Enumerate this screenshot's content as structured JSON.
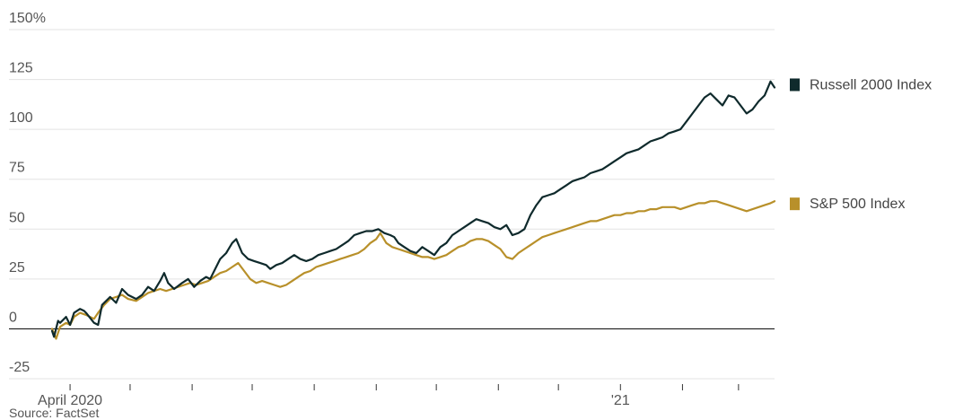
{
  "source": "Source: FactSet",
  "chart_data": {
    "type": "line",
    "title": "",
    "xlabel": "",
    "ylabel": "",
    "y_unit": "%",
    "ylim": [
      -25,
      150
    ],
    "y_ticks": [
      {
        "value": 150,
        "label": "150%"
      },
      {
        "value": 125,
        "label": "125"
      },
      {
        "value": 100,
        "label": "100"
      },
      {
        "value": 75,
        "label": "75"
      },
      {
        "value": 50,
        "label": "50"
      },
      {
        "value": 25,
        "label": "25"
      },
      {
        "value": 0,
        "label": "0"
      },
      {
        "value": -25,
        "label": "-25"
      }
    ],
    "x_range": [
      "2020-03-23",
      "2021-03-19"
    ],
    "x_ticks": [
      {
        "date": "2020-04-01",
        "label": "April 2020"
      },
      {
        "date": "2020-05-01",
        "label": ""
      },
      {
        "date": "2020-06-01",
        "label": ""
      },
      {
        "date": "2020-07-01",
        "label": ""
      },
      {
        "date": "2020-08-01",
        "label": ""
      },
      {
        "date": "2020-09-01",
        "label": ""
      },
      {
        "date": "2020-10-01",
        "label": ""
      },
      {
        "date": "2020-11-01",
        "label": ""
      },
      {
        "date": "2020-12-01",
        "label": ""
      },
      {
        "date": "2021-01-01",
        "label": "'21"
      },
      {
        "date": "2021-02-01",
        "label": ""
      },
      {
        "date": "2021-03-01",
        "label": ""
      }
    ],
    "grid": true,
    "legend": "right, at line ends",
    "series": [
      {
        "name": "Russell 2000 Index",
        "color": "#0f2a2c",
        "points": [
          [
            "2020-03-23",
            -1
          ],
          [
            "2020-03-24",
            -4
          ],
          [
            "2020-03-26",
            4
          ],
          [
            "2020-03-27",
            3
          ],
          [
            "2020-03-30",
            6
          ],
          [
            "2020-04-01",
            2
          ],
          [
            "2020-04-03",
            8
          ],
          [
            "2020-04-06",
            10
          ],
          [
            "2020-04-08",
            9
          ],
          [
            "2020-04-09",
            8
          ],
          [
            "2020-04-13",
            3
          ],
          [
            "2020-04-15",
            2
          ],
          [
            "2020-04-17",
            12
          ],
          [
            "2020-04-21",
            16
          ],
          [
            "2020-04-24",
            13
          ],
          [
            "2020-04-27",
            20
          ],
          [
            "2020-04-30",
            17
          ],
          [
            "2020-05-04",
            15
          ],
          [
            "2020-05-07",
            17
          ],
          [
            "2020-05-10",
            21
          ],
          [
            "2020-05-13",
            19
          ],
          [
            "2020-05-16",
            24
          ],
          [
            "2020-05-18",
            28
          ],
          [
            "2020-05-20",
            23
          ],
          [
            "2020-05-23",
            20
          ],
          [
            "2020-05-27",
            23
          ],
          [
            "2020-05-30",
            25
          ],
          [
            "2020-06-02",
            21
          ],
          [
            "2020-06-05",
            24
          ],
          [
            "2020-06-08",
            26
          ],
          [
            "2020-06-10",
            25
          ],
          [
            "2020-06-12",
            29
          ],
          [
            "2020-06-15",
            35
          ],
          [
            "2020-06-18",
            38
          ],
          [
            "2020-06-21",
            43
          ],
          [
            "2020-06-23",
            45
          ],
          [
            "2020-06-26",
            38
          ],
          [
            "2020-06-29",
            35
          ],
          [
            "2020-07-02",
            34
          ],
          [
            "2020-07-05",
            33
          ],
          [
            "2020-07-08",
            32
          ],
          [
            "2020-07-10",
            30
          ],
          [
            "2020-07-13",
            32
          ],
          [
            "2020-07-16",
            33
          ],
          [
            "2020-07-19",
            35
          ],
          [
            "2020-07-22",
            37
          ],
          [
            "2020-07-25",
            35
          ],
          [
            "2020-07-28",
            34
          ],
          [
            "2020-07-31",
            35
          ],
          [
            "2020-08-03",
            37
          ],
          [
            "2020-08-06",
            38
          ],
          [
            "2020-08-09",
            39
          ],
          [
            "2020-08-12",
            40
          ],
          [
            "2020-08-15",
            42
          ],
          [
            "2020-08-18",
            44
          ],
          [
            "2020-08-21",
            47
          ],
          [
            "2020-08-24",
            48
          ],
          [
            "2020-08-27",
            49
          ],
          [
            "2020-08-30",
            49
          ],
          [
            "2020-09-02",
            50
          ],
          [
            "2020-09-05",
            48
          ],
          [
            "2020-09-08",
            47
          ],
          [
            "2020-09-10",
            46
          ],
          [
            "2020-09-12",
            43
          ],
          [
            "2020-09-15",
            41
          ],
          [
            "2020-09-18",
            39
          ],
          [
            "2020-09-21",
            38
          ],
          [
            "2020-09-24",
            41
          ],
          [
            "2020-09-27",
            39
          ],
          [
            "2020-09-30",
            37
          ],
          [
            "2020-10-03",
            41
          ],
          [
            "2020-10-06",
            43
          ],
          [
            "2020-10-09",
            47
          ],
          [
            "2020-10-12",
            49
          ],
          [
            "2020-10-15",
            51
          ],
          [
            "2020-10-18",
            53
          ],
          [
            "2020-10-21",
            55
          ],
          [
            "2020-10-24",
            54
          ],
          [
            "2020-10-27",
            53
          ],
          [
            "2020-10-30",
            51
          ],
          [
            "2020-11-02",
            50
          ],
          [
            "2020-11-05",
            52
          ],
          [
            "2020-11-08",
            47
          ],
          [
            "2020-11-11",
            48
          ],
          [
            "2020-11-14",
            50
          ],
          [
            "2020-11-17",
            57
          ],
          [
            "2020-11-20",
            62
          ],
          [
            "2020-11-23",
            66
          ],
          [
            "2020-11-26",
            67
          ],
          [
            "2020-11-29",
            68
          ],
          [
            "2020-12-02",
            70
          ],
          [
            "2020-12-05",
            72
          ],
          [
            "2020-12-08",
            74
          ],
          [
            "2020-12-11",
            75
          ],
          [
            "2020-12-14",
            76
          ],
          [
            "2020-12-17",
            78
          ],
          [
            "2020-12-20",
            79
          ],
          [
            "2020-12-23",
            80
          ],
          [
            "2020-12-26",
            82
          ],
          [
            "2020-12-29",
            84
          ],
          [
            "2021-01-01",
            86
          ],
          [
            "2021-01-04",
            88
          ],
          [
            "2021-01-07",
            89
          ],
          [
            "2021-01-10",
            90
          ],
          [
            "2021-01-13",
            92
          ],
          [
            "2021-01-16",
            94
          ],
          [
            "2021-01-19",
            95
          ],
          [
            "2021-01-22",
            96
          ],
          [
            "2021-01-25",
            98
          ],
          [
            "2021-01-28",
            99
          ],
          [
            "2021-01-31",
            100
          ],
          [
            "2021-02-03",
            104
          ],
          [
            "2021-02-06",
            108
          ],
          [
            "2021-02-09",
            112
          ],
          [
            "2021-02-12",
            116
          ],
          [
            "2021-02-15",
            118
          ],
          [
            "2021-02-18",
            115
          ],
          [
            "2021-02-21",
            112
          ],
          [
            "2021-02-24",
            117
          ],
          [
            "2021-02-27",
            116
          ],
          [
            "2021-03-02",
            112
          ],
          [
            "2021-03-05",
            108
          ],
          [
            "2021-03-08",
            110
          ],
          [
            "2021-03-11",
            114
          ],
          [
            "2021-03-14",
            117
          ],
          [
            "2021-03-17",
            124
          ],
          [
            "2021-03-19",
            121
          ]
        ]
      },
      {
        "name": "S&P 500 Index",
        "color": "#b8902a",
        "points": [
          [
            "2020-03-23",
            0
          ],
          [
            "2020-03-25",
            -5
          ],
          [
            "2020-03-27",
            1
          ],
          [
            "2020-03-30",
            3
          ],
          [
            "2020-04-01",
            2
          ],
          [
            "2020-04-03",
            6
          ],
          [
            "2020-04-06",
            8
          ],
          [
            "2020-04-09",
            7
          ],
          [
            "2020-04-13",
            5
          ],
          [
            "2020-04-15",
            8
          ],
          [
            "2020-04-18",
            12
          ],
          [
            "2020-04-21",
            15
          ],
          [
            "2020-04-24",
            16
          ],
          [
            "2020-04-27",
            17
          ],
          [
            "2020-04-30",
            15
          ],
          [
            "2020-05-04",
            14
          ],
          [
            "2020-05-07",
            16
          ],
          [
            "2020-05-10",
            18
          ],
          [
            "2020-05-13",
            19
          ],
          [
            "2020-05-16",
            20
          ],
          [
            "2020-05-19",
            19
          ],
          [
            "2020-05-22",
            20
          ],
          [
            "2020-05-25",
            21
          ],
          [
            "2020-05-28",
            22
          ],
          [
            "2020-05-31",
            23
          ],
          [
            "2020-06-03",
            22
          ],
          [
            "2020-06-06",
            23
          ],
          [
            "2020-06-09",
            24
          ],
          [
            "2020-06-12",
            26
          ],
          [
            "2020-06-15",
            28
          ],
          [
            "2020-06-18",
            29
          ],
          [
            "2020-06-21",
            31
          ],
          [
            "2020-06-24",
            33
          ],
          [
            "2020-06-27",
            29
          ],
          [
            "2020-06-30",
            25
          ],
          [
            "2020-07-03",
            23
          ],
          [
            "2020-07-06",
            24
          ],
          [
            "2020-07-09",
            23
          ],
          [
            "2020-07-12",
            22
          ],
          [
            "2020-07-15",
            21
          ],
          [
            "2020-07-18",
            22
          ],
          [
            "2020-07-21",
            24
          ],
          [
            "2020-07-24",
            26
          ],
          [
            "2020-07-27",
            28
          ],
          [
            "2020-07-30",
            29
          ],
          [
            "2020-08-02",
            31
          ],
          [
            "2020-08-05",
            32
          ],
          [
            "2020-08-08",
            33
          ],
          [
            "2020-08-11",
            34
          ],
          [
            "2020-08-14",
            35
          ],
          [
            "2020-08-17",
            36
          ],
          [
            "2020-08-20",
            37
          ],
          [
            "2020-08-23",
            38
          ],
          [
            "2020-08-26",
            40
          ],
          [
            "2020-08-29",
            43
          ],
          [
            "2020-09-01",
            45
          ],
          [
            "2020-09-03",
            48
          ],
          [
            "2020-09-06",
            43
          ],
          [
            "2020-09-09",
            41
          ],
          [
            "2020-09-12",
            40
          ],
          [
            "2020-09-15",
            39
          ],
          [
            "2020-09-18",
            38
          ],
          [
            "2020-09-21",
            37
          ],
          [
            "2020-09-24",
            36
          ],
          [
            "2020-09-27",
            36
          ],
          [
            "2020-09-30",
            35
          ],
          [
            "2020-10-03",
            36
          ],
          [
            "2020-10-06",
            37
          ],
          [
            "2020-10-09",
            39
          ],
          [
            "2020-10-12",
            41
          ],
          [
            "2020-10-15",
            42
          ],
          [
            "2020-10-18",
            44
          ],
          [
            "2020-10-21",
            45
          ],
          [
            "2020-10-24",
            45
          ],
          [
            "2020-10-27",
            44
          ],
          [
            "2020-10-30",
            42
          ],
          [
            "2020-11-02",
            40
          ],
          [
            "2020-11-05",
            36
          ],
          [
            "2020-11-08",
            35
          ],
          [
            "2020-11-11",
            38
          ],
          [
            "2020-11-14",
            40
          ],
          [
            "2020-11-17",
            42
          ],
          [
            "2020-11-20",
            44
          ],
          [
            "2020-11-23",
            46
          ],
          [
            "2020-11-26",
            47
          ],
          [
            "2020-11-29",
            48
          ],
          [
            "2020-12-02",
            49
          ],
          [
            "2020-12-05",
            50
          ],
          [
            "2020-12-08",
            51
          ],
          [
            "2020-12-11",
            52
          ],
          [
            "2020-12-14",
            53
          ],
          [
            "2020-12-17",
            54
          ],
          [
            "2020-12-20",
            54
          ],
          [
            "2020-12-23",
            55
          ],
          [
            "2020-12-26",
            56
          ],
          [
            "2020-12-29",
            57
          ],
          [
            "2021-01-01",
            57
          ],
          [
            "2021-01-04",
            58
          ],
          [
            "2021-01-07",
            58
          ],
          [
            "2021-01-10",
            59
          ],
          [
            "2021-01-13",
            59
          ],
          [
            "2021-01-16",
            60
          ],
          [
            "2021-01-19",
            60
          ],
          [
            "2021-01-22",
            61
          ],
          [
            "2021-01-25",
            61
          ],
          [
            "2021-01-28",
            61
          ],
          [
            "2021-01-31",
            60
          ],
          [
            "2021-02-03",
            61
          ],
          [
            "2021-02-06",
            62
          ],
          [
            "2021-02-09",
            63
          ],
          [
            "2021-02-12",
            63
          ],
          [
            "2021-02-15",
            64
          ],
          [
            "2021-02-18",
            64
          ],
          [
            "2021-02-21",
            63
          ],
          [
            "2021-02-24",
            62
          ],
          [
            "2021-02-27",
            61
          ],
          [
            "2021-03-02",
            60
          ],
          [
            "2021-03-05",
            59
          ],
          [
            "2021-03-08",
            60
          ],
          [
            "2021-03-11",
            61
          ],
          [
            "2021-03-14",
            62
          ],
          [
            "2021-03-17",
            63
          ],
          [
            "2021-03-19",
            64
          ]
        ]
      }
    ]
  }
}
